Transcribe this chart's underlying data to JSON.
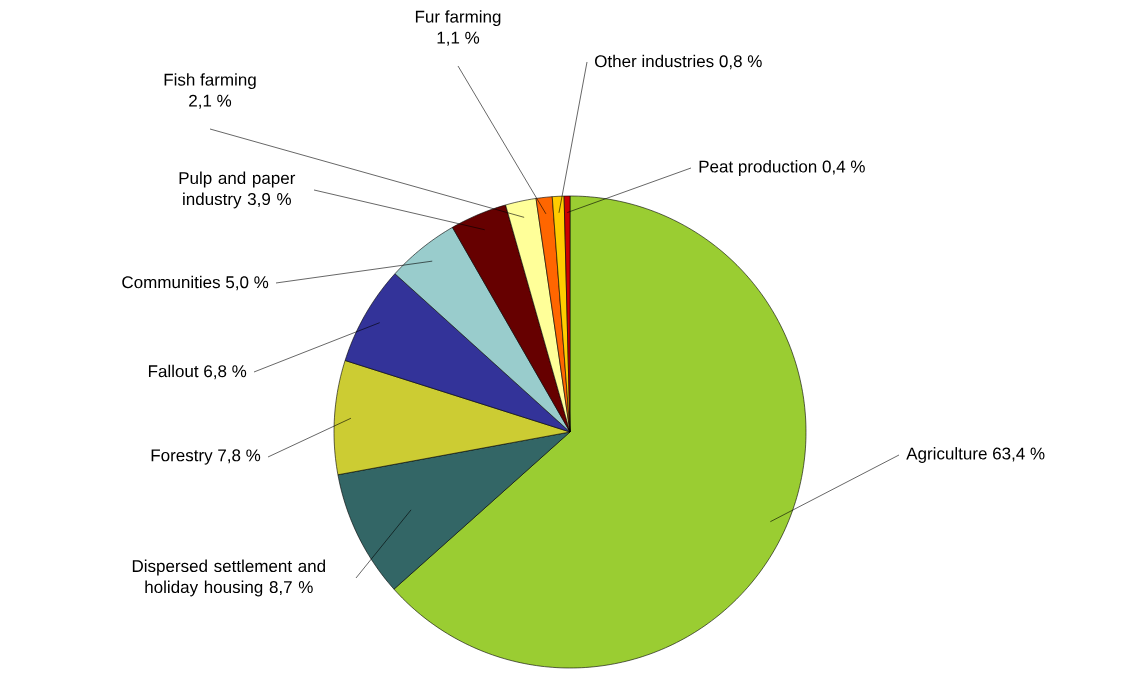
{
  "chart_data": {
    "type": "pie",
    "categories": [
      "Agriculture",
      "Dispersed settlement and holiday housing",
      "Forestry",
      "Fallout",
      "Communities",
      "Pulp and paper industry",
      "Fish farming",
      "Fur farming",
      "Other industries",
      "Peat production"
    ],
    "values": [
      63.4,
      8.7,
      7.8,
      6.8,
      5.0,
      3.9,
      2.1,
      1.1,
      0.8,
      0.4
    ],
    "value_labels": [
      "63,4 %",
      "8,7 %",
      "7,8 %",
      "6,8 %",
      "5,0 %",
      "3,9 %",
      "2,1 %",
      "1,1 %",
      "0,8 %",
      "0,4 %"
    ],
    "colors": [
      "#9acd32",
      "#336666",
      "#cccc33",
      "#333399",
      "#99cccc",
      "#660000",
      "#ffff99",
      "#ff6600",
      "#ffcc00",
      "#cc0000"
    ]
  }
}
